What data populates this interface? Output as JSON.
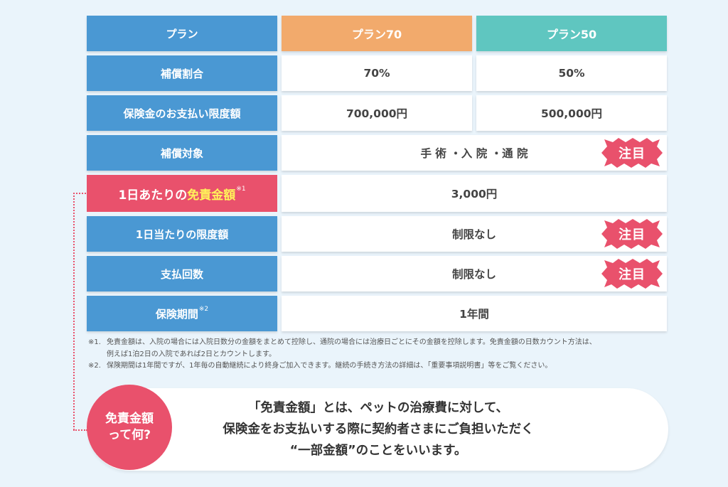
{
  "table": {
    "header": {
      "label": "プラン",
      "plan70": "プラン70",
      "plan50": "プラン50"
    },
    "rows": {
      "ratio": {
        "label": "補償割合",
        "plan70": "70%",
        "plan50": "50%"
      },
      "limit": {
        "label": "保険金のお支払い限度額",
        "plan70": "700,000円",
        "plan50": "500,000円"
      },
      "coverage": {
        "label": "補償対象",
        "value": "手 術 ・入 院 ・通 院"
      },
      "deductible": {
        "label_prefix": "1日あたりの",
        "label_highlight": "免責金額",
        "label_note": "※1",
        "value": "3,000円"
      },
      "daily_limit": {
        "label": "1日当たりの限度額",
        "value": "制限なし"
      },
      "count": {
        "label": "支払回数",
        "value": "制限なし"
      },
      "period": {
        "label": "保険期間",
        "label_note": "※2",
        "value": "1年間"
      }
    },
    "badge_label": "注目"
  },
  "notes": [
    {
      "mark": "※1.",
      "text": "免責金額は、入院の場合には入院日数分の金額をまとめて控除し、通院の場合には治療日ごとにその金額を控除します。免責金額の日数カウント方法は、"
    },
    {
      "mark": "",
      "text": "例えば1泊2日の入院であれば2日とカウントします。"
    },
    {
      "mark": "※2.",
      "text": "保険期間は1年間ですが、1年毎の自動継続により終身ご加入できます。継続の手続き方法の詳細は、「重要事項説明書」等をご覧ください。"
    }
  ],
  "faq": {
    "question_line1": "免責金額",
    "question_line2": "って何?",
    "answer_line1": "「免責金額」とは、ペットの治療費に対して、",
    "answer_line2": "保険金をお支払いする際に契約者さまにご負担いただく",
    "answer_line3": "“一部金額”のことをいいます。"
  },
  "colors": {
    "header_blue": "#4a98d3",
    "plan70_orange": "#f2aa6c",
    "plan50_teal": "#5fc6c0",
    "accent_red": "#e9516c",
    "highlight_yellow": "#fff25a",
    "badge_red": "#e9516c"
  }
}
